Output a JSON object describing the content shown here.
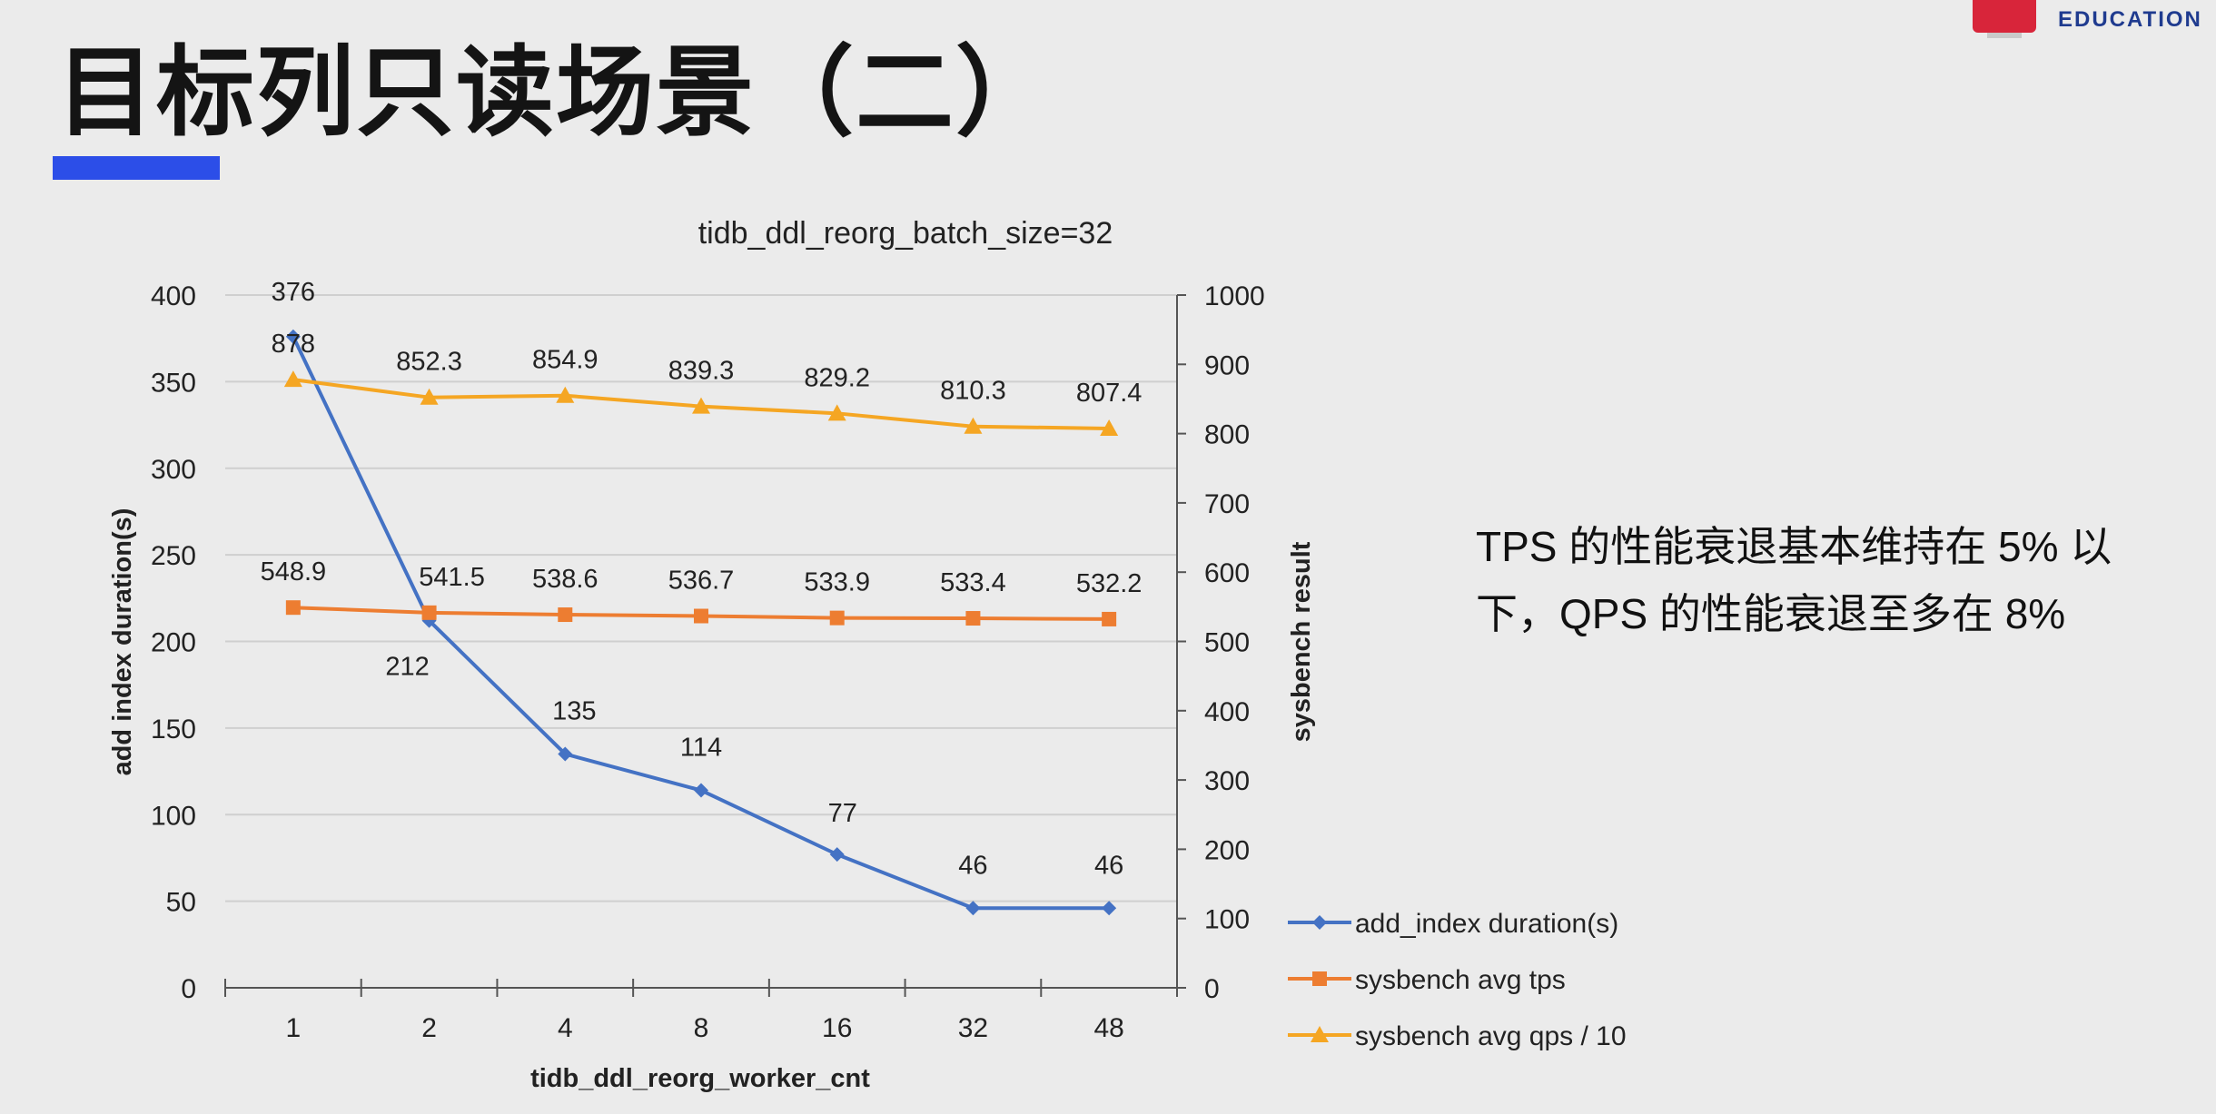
{
  "slide": {
    "title": "目标列只读场景（二）",
    "note": "TPS 的性能衰退基本维持在 5% 以下，QPS 的性能衰退至多在 8%",
    "accent_color": "#2c4ee8"
  },
  "brand": {
    "text": "EDUCATION",
    "logo_color": "#d8253a",
    "text_color": "#1f3b8f"
  },
  "chart_data": {
    "type": "line",
    "title": "tidb_ddl_reorg_batch_size=32",
    "xlabel": "tidb_ddl_reorg_worker_cnt",
    "ylabel": "add index duration(s)",
    "y2label": "sysbench result",
    "categories": [
      "1",
      "2",
      "4",
      "8",
      "16",
      "32",
      "48"
    ],
    "ylim": [
      0,
      400
    ],
    "yticks": [
      0,
      50,
      100,
      150,
      200,
      250,
      300,
      350,
      400
    ],
    "y2lim": [
      0,
      1000
    ],
    "y2ticks": [
      0,
      100,
      200,
      300,
      400,
      500,
      600,
      700,
      800,
      900,
      1000
    ],
    "grid": true,
    "legend": "bottom-right",
    "series": [
      {
        "name": "add_index duration(s)",
        "axis": "left",
        "color": "#4472c4",
        "marker": "diamond",
        "values": [
          376,
          212,
          135,
          114,
          77,
          46,
          46
        ],
        "labels": [
          "376",
          "212",
          "135",
          "114",
          "77",
          "46",
          "46"
        ]
      },
      {
        "name": "sysbench avg tps",
        "axis": "right",
        "color": "#ed7d31",
        "marker": "square",
        "values": [
          548.9,
          541.5,
          538.6,
          536.7,
          533.9,
          533.4,
          532.2
        ],
        "labels": [
          "548.9",
          "541.5",
          "538.6",
          "536.7",
          "533.9",
          "533.4",
          "532.2"
        ]
      },
      {
        "name": "sysbench avg qps / 10",
        "axis": "right",
        "color": "#f5a623",
        "marker": "triangle",
        "values": [
          878,
          852.3,
          854.9,
          839.3,
          829.2,
          810.3,
          807.4
        ],
        "labels": [
          "878",
          "852.3",
          "854.9",
          "839.3",
          "829.2",
          "810.3",
          "807.4"
        ]
      }
    ]
  }
}
